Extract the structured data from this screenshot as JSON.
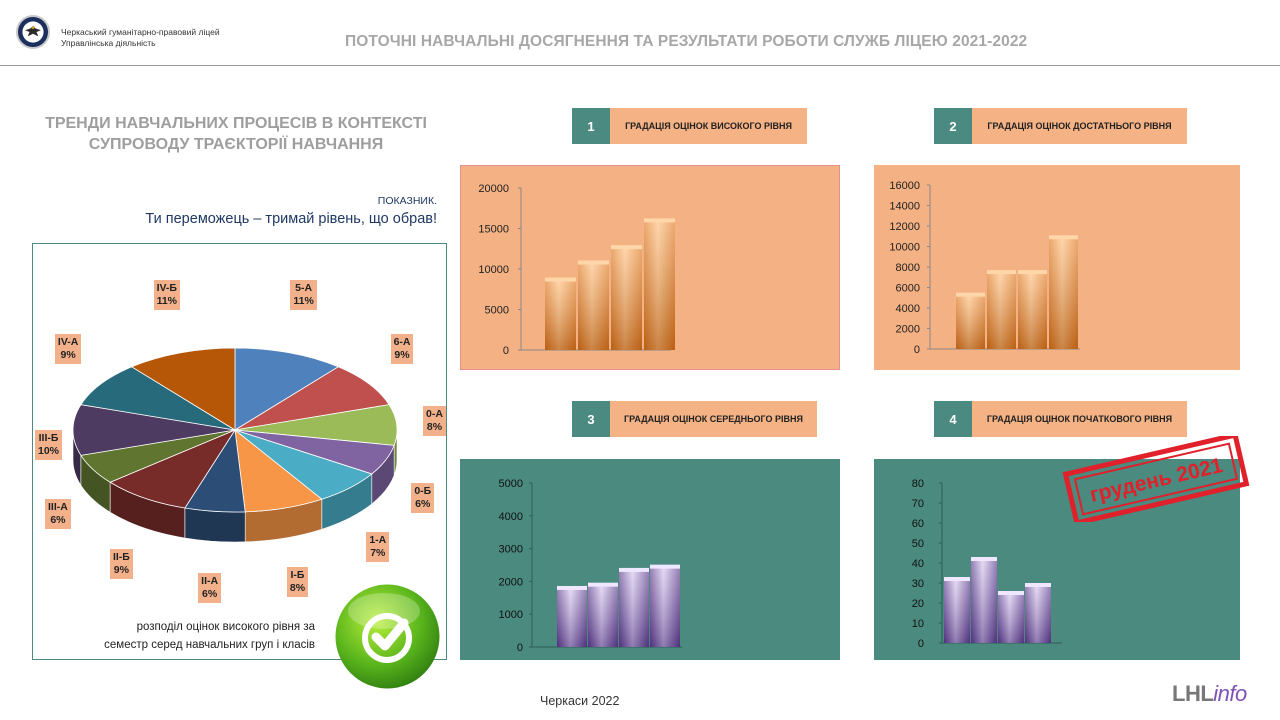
{
  "header": {
    "school_name": "Черкаський гуманітарно-правовий ліцей",
    "school_subtitle": "Управлінська діяльність",
    "title": "ПОТОЧНІ НАВЧАЛЬНІ ДОСЯГНЕННЯ ТА РЕЗУЛЬТАТИ РОБОТИ СЛУЖБ ЛІЦЕЮ 2021-2022",
    "logo_icon": "eagle-emblem-icon"
  },
  "left": {
    "heading_line1": "ТРЕНДИ НАВЧАЛЬНИХ ПРОЦЕСІВ В КОНТЕКСТІ",
    "heading_line2": "СУПРОВОДУ ТРАЄКТОРІЇ НАВЧАННЯ",
    "indicator_label": "ПОКАЗНИК.",
    "motto": "Ти переможець – тримай рівень, що обрав!",
    "caption_line1": "розподіл оцінок високого рівня за",
    "caption_line2": "семестр серед навчальних груп і класів",
    "check_icon": "checkmark-icon"
  },
  "panels": [
    {
      "number": "1",
      "title": "ГРАДАЦІЯ ОЦІНОК ВИСОКОГО РІВНЯ"
    },
    {
      "number": "2",
      "title": "ГРАДАЦІЯ ОЦІНОК ДОСТАТНЬОГО РІВНЯ"
    },
    {
      "number": "3",
      "title": "ГРАДАЦІЯ ОЦІНОК СЕРЕДНЬОГО РІВНЯ"
    },
    {
      "number": "4",
      "title": "ГРАДАЦІЯ ОЦІНОК ПОЧАТКОВОГО РІВНЯ"
    }
  ],
  "stamp": {
    "text": "грудень 2021",
    "color": "#e0202a"
  },
  "footer": {
    "text": "Черкаси 2022"
  },
  "brand": {
    "part1": "LHL",
    "part2": "info"
  },
  "colors": {
    "teal": "#4a8a81",
    "peach": "#f5b284",
    "panel_peach": "#f4b183",
    "panel_teal": "#4a8a7f"
  },
  "chart_data": [
    {
      "type": "pie",
      "categories": [
        "5-А",
        "6-А",
        "0-А",
        "0-Б",
        "1-А",
        "І-Б",
        "ІІ-А",
        "ІІ-Б",
        "ІІІ-А",
        "ІІІ-Б",
        "IV-А",
        "IV-Б"
      ],
      "values": [
        11,
        9,
        8,
        6,
        7,
        8,
        6,
        9,
        6,
        10,
        9,
        11
      ],
      "labels": [
        "11%",
        "9%",
        "8%",
        "6%",
        "7%",
        "8%",
        "6%",
        "9%",
        "6%",
        "10%",
        "9%",
        "11%"
      ],
      "colors": [
        "#4f81bd",
        "#c0504d",
        "#9bbb59",
        "#8064a2",
        "#4bacc6",
        "#f79646",
        "#2c4d75",
        "#772c2a",
        "#5f7530",
        "#4d3b62",
        "#276a7c",
        "#b65708"
      ]
    },
    {
      "type": "bar",
      "values": [
        8700,
        10800,
        12700,
        16000
      ],
      "ylim": [
        0,
        20000
      ],
      "yticks": [
        "0",
        "5000",
        "10000",
        "15000",
        "20000"
      ]
    },
    {
      "type": "bar",
      "values": [
        5300,
        7500,
        7500,
        10900
      ],
      "ylim": [
        0,
        16000
      ],
      "yticks": [
        "0",
        "2000",
        "4000",
        "6000",
        "8000",
        "10000",
        "12000",
        "14000",
        "16000"
      ]
    },
    {
      "type": "bar",
      "values": [
        1800,
        1900,
        2350,
        2450
      ],
      "ylim": [
        0,
        5000
      ],
      "yticks": [
        "0",
        "1000",
        "2000",
        "3000",
        "4000",
        "5000"
      ]
    },
    {
      "type": "bar",
      "values": [
        32,
        42,
        25,
        29
      ],
      "ylim": [
        0,
        80
      ],
      "yticks": [
        "0",
        "10",
        "20",
        "30",
        "40",
        "50",
        "60",
        "70",
        "80"
      ]
    }
  ]
}
